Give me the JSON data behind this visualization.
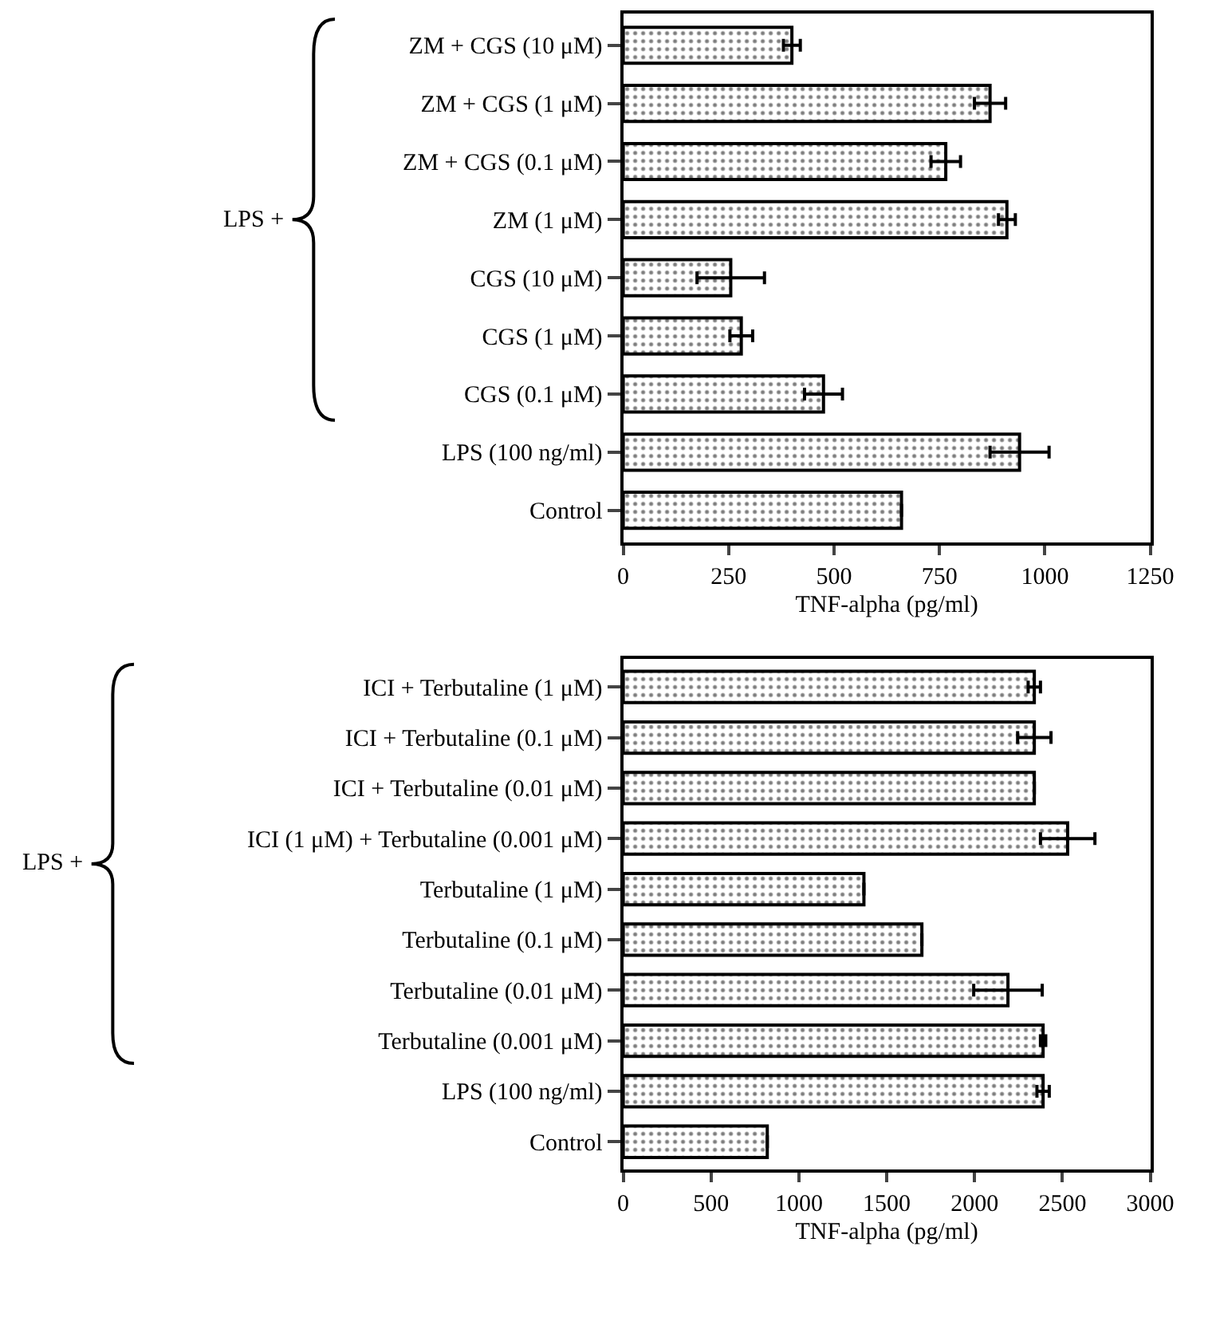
{
  "chart_data": [
    {
      "type": "bar",
      "orientation": "horizontal",
      "xlabel": "TNF-alpha (pg/ml)",
      "annotations": [
        "LPS +"
      ],
      "categories": [
        "ZM + CGS (10 μM)",
        "ZM + CGS (1 μM)",
        "ZM + CGS (0.1 μM)",
        "ZM (1 μM)",
        "CGS (10 μM)",
        "CGS (1 μM)",
        "CGS (0.1 μM)",
        "LPS (100 ng/ml)",
        "Control"
      ],
      "values": [
        400,
        870,
        765,
        910,
        255,
        280,
        475,
        940,
        660
      ],
      "errors": [
        20,
        37,
        35,
        20,
        80,
        27,
        45,
        70,
        null
      ],
      "color": "#000000",
      "xlim": [
        0,
        1250
      ],
      "xticks": [
        0,
        250,
        500,
        750,
        1000,
        1250
      ]
    },
    {
      "type": "bar",
      "orientation": "horizontal",
      "xlabel": "TNF-alpha (pg/ml)",
      "annotations": [
        "LPS +"
      ],
      "categories": [
        "ICI + Terbutaline (1 μM)",
        "ICI + Terbutaline (0.1 μM)",
        "ICI + Terbutaline (0.01 μM)",
        "ICI (1 μM) + Terbutaline (0.001 μM)",
        "Terbutaline (1 μM)",
        "Terbutaline (0.1 μM)",
        "Terbutaline (0.01 μM)",
        "Terbutaline (0.001 μM)",
        "LPS (100 ng/ml)",
        "Control"
      ],
      "values": [
        2340,
        2340,
        2340,
        2530,
        1370,
        1700,
        2190,
        2390,
        2390,
        820
      ],
      "errors": [
        35,
        95,
        null,
        155,
        null,
        null,
        195,
        15,
        35,
        null
      ],
      "color": "#000000",
      "xlim": [
        0,
        3000
      ],
      "xticks": [
        0,
        500,
        1000,
        1500,
        2000,
        2500,
        3000
      ]
    }
  ]
}
